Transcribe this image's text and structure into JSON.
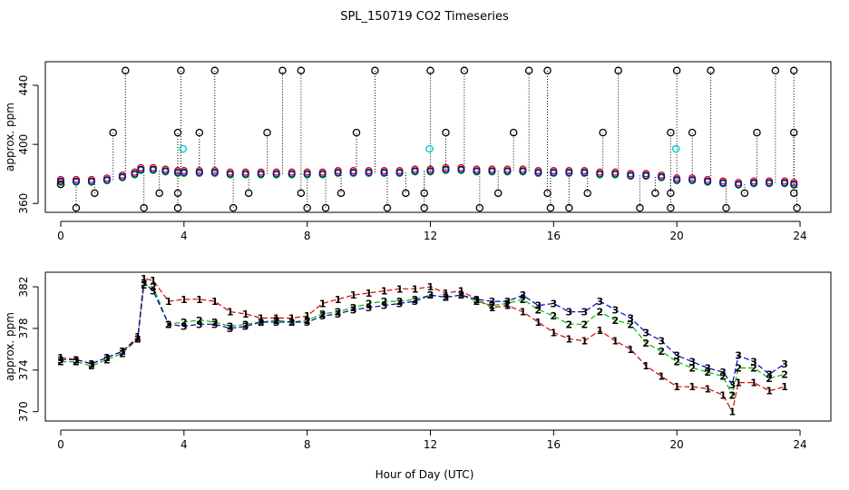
{
  "figure": {
    "title": "SPL_150719  CO2 Timeseries",
    "x_axis_label": "Hour of Day (UTC)"
  },
  "chart_data": [
    {
      "type": "scatter",
      "panel": "top",
      "ylabel": "approx. ppm",
      "xlim": [
        -0.5,
        25
      ],
      "ylim": [
        354,
        456
      ],
      "x_ticks": [
        0,
        4,
        8,
        12,
        16,
        20,
        24
      ],
      "y_ticks": [
        360,
        400,
        440
      ],
      "colors": {
        "red": "#dd0000",
        "green": "#00bb00",
        "blue": "#0000cc",
        "cyan": "#00cccc",
        "black": "#000000"
      },
      "series": [
        {
          "name": "mean concentration (red/green/blue)",
          "x": [
            0.0,
            0.5,
            1.0,
            1.5,
            2.0,
            2.4,
            2.6,
            3.0,
            3.4,
            3.8,
            4.0,
            4.5,
            5.0,
            5.5,
            6.0,
            6.5,
            7.0,
            7.5,
            8.0,
            8.5,
            9.0,
            9.5,
            10.0,
            10.5,
            11.0,
            11.5,
            12.0,
            12.5,
            13.0,
            13.5,
            14.0,
            14.5,
            15.0,
            15.5,
            16.0,
            16.5,
            17.0,
            17.5,
            18.0,
            18.5,
            19.0,
            19.5,
            20.0,
            20.5,
            21.0,
            21.5,
            22.0,
            22.5,
            23.0,
            23.5,
            23.8
          ],
          "y": [
            375,
            375,
            375,
            376,
            378,
            380,
            383,
            383,
            382,
            381,
            381,
            381,
            381,
            380,
            380,
            380,
            380,
            380,
            380,
            380,
            381,
            381,
            381,
            381,
            381,
            382,
            382,
            383,
            383,
            382,
            382,
            382,
            382,
            381,
            381,
            381,
            381,
            380,
            380,
            379,
            379,
            378,
            376,
            376,
            375,
            374,
            373,
            374,
            374,
            374,
            373
          ]
        },
        {
          "name": "flagged high (black circles)",
          "x": [
            0.0,
            1.7,
            2.1,
            3.9,
            3.8,
            4.5,
            5.0,
            6.7,
            7.2,
            7.8,
            9.6,
            10.2,
            12.0,
            12.5,
            13.1,
            14.7,
            15.2,
            15.8,
            17.6,
            18.1,
            19.8,
            20.0,
            20.5,
            21.1,
            22.6,
            23.2,
            23.8,
            23.8
          ],
          "y": [
            373,
            408,
            450,
            450,
            408,
            408,
            450,
            408,
            450,
            450,
            408,
            450,
            450,
            408,
            450,
            408,
            450,
            450,
            408,
            450,
            408,
            450,
            408,
            450,
            408,
            450,
            450,
            408
          ]
        },
        {
          "name": "flagged low (black circles)",
          "x": [
            0.5,
            1.1,
            2.7,
            3.2,
            3.8,
            3.8,
            5.6,
            6.1,
            7.8,
            8.0,
            8.6,
            9.1,
            10.6,
            11.2,
            11.8,
            11.8,
            13.6,
            14.2,
            15.8,
            15.9,
            16.5,
            17.1,
            18.8,
            19.3,
            19.8,
            19.8,
            21.6,
            22.2,
            23.8,
            23.9
          ],
          "y": [
            357,
            367,
            357,
            367,
            357,
            367,
            357,
            367,
            367,
            357,
            357,
            367,
            357,
            367,
            367,
            357,
            357,
            367,
            367,
            357,
            357,
            367,
            357,
            367,
            367,
            357,
            357,
            367,
            367,
            357
          ]
        },
        {
          "name": "cyan circles",
          "x": [
            3.97,
            11.97,
            19.97
          ],
          "y": [
            397,
            397,
            397
          ]
        }
      ]
    },
    {
      "type": "line",
      "panel": "bottom",
      "ylabel": "approx. ppm",
      "xlim": [
        -0.5,
        25
      ],
      "ylim": [
        369.1,
        383.4
      ],
      "x_ticks": [
        0,
        4,
        8,
        12,
        16,
        20,
        24
      ],
      "y_ticks": [
        370,
        374,
        378,
        382
      ],
      "colors": {
        "1": "#dd0000",
        "2": "#00bb00",
        "3": "#0000cc"
      },
      "series": [
        {
          "name": "1",
          "label": "1",
          "x": [
            0.0,
            0.5,
            1.0,
            1.5,
            2.0,
            2.5,
            2.7,
            3.0,
            3.5,
            4.0,
            4.5,
            5.0,
            5.5,
            6.0,
            6.5,
            7.0,
            7.5,
            8.0,
            8.5,
            9.0,
            9.5,
            10.0,
            10.5,
            11.0,
            11.5,
            12.0,
            12.5,
            13.0,
            13.5,
            14.0,
            14.5,
            15.0,
            15.5,
            16.0,
            16.5,
            17.0,
            17.5,
            18.0,
            18.5,
            19.0,
            19.5,
            20.0,
            20.5,
            21.0,
            21.5,
            21.8,
            22.0,
            22.5,
            23.0,
            23.5
          ],
          "y": [
            375.2,
            375.0,
            374.6,
            375.2,
            375.8,
            377.2,
            382.8,
            382.6,
            380.6,
            380.8,
            380.8,
            380.6,
            379.6,
            379.4,
            379.0,
            379.0,
            379.0,
            379.2,
            380.4,
            380.8,
            381.2,
            381.4,
            381.6,
            381.8,
            381.8,
            382.0,
            381.4,
            381.6,
            380.8,
            380.0,
            380.2,
            379.6,
            378.6,
            377.6,
            377.0,
            376.8,
            377.8,
            376.8,
            376.0,
            374.4,
            373.4,
            372.4,
            372.4,
            372.2,
            371.6,
            370.0,
            372.8,
            372.8,
            372.0,
            372.4
          ]
        },
        {
          "name": "2",
          "label": "2",
          "x": [
            0.0,
            0.5,
            1.0,
            1.5,
            2.0,
            2.5,
            2.7,
            3.0,
            3.5,
            4.0,
            4.5,
            5.0,
            5.5,
            6.0,
            6.5,
            7.0,
            7.5,
            8.0,
            8.5,
            9.0,
            9.5,
            10.0,
            10.5,
            11.0,
            11.5,
            12.0,
            12.5,
            13.0,
            13.5,
            14.0,
            14.5,
            15.0,
            15.5,
            16.0,
            16.5,
            17.0,
            17.5,
            18.0,
            18.5,
            19.0,
            19.5,
            20.0,
            20.5,
            21.0,
            21.5,
            21.8,
            22.0,
            22.5,
            23.0,
            23.5
          ],
          "y": [
            374.8,
            374.8,
            374.4,
            375.0,
            375.6,
            377.0,
            382.2,
            382.0,
            378.4,
            378.6,
            378.8,
            378.6,
            378.2,
            378.4,
            378.6,
            378.8,
            378.6,
            378.8,
            379.4,
            379.6,
            380.0,
            380.4,
            380.6,
            380.6,
            380.8,
            381.2,
            381.0,
            381.2,
            380.6,
            380.2,
            380.4,
            380.8,
            379.8,
            379.2,
            378.4,
            378.4,
            379.6,
            378.8,
            378.4,
            376.6,
            375.8,
            374.8,
            374.2,
            373.8,
            373.4,
            371.6,
            374.2,
            374.2,
            373.2,
            373.6
          ]
        },
        {
          "name": "3",
          "label": "3",
          "x": [
            0.0,
            0.5,
            1.0,
            1.5,
            2.0,
            2.5,
            2.7,
            3.0,
            3.5,
            4.0,
            4.5,
            5.0,
            5.5,
            6.0,
            6.5,
            7.0,
            7.5,
            8.0,
            8.5,
            9.0,
            9.5,
            10.0,
            10.5,
            11.0,
            11.5,
            12.0,
            12.5,
            13.0,
            13.5,
            14.0,
            14.5,
            15.0,
            15.5,
            16.0,
            16.5,
            17.0,
            17.5,
            18.0,
            18.5,
            19.0,
            19.5,
            20.0,
            20.5,
            21.0,
            21.5,
            21.8,
            22.0,
            22.5,
            23.0,
            23.5
          ],
          "y": [
            375.0,
            375.0,
            374.6,
            375.2,
            375.8,
            377.0,
            382.4,
            381.6,
            378.4,
            378.2,
            378.4,
            378.4,
            378.0,
            378.2,
            378.6,
            378.6,
            378.6,
            378.6,
            379.2,
            379.4,
            379.8,
            380.0,
            380.2,
            380.4,
            380.6,
            381.2,
            381.0,
            381.2,
            380.8,
            380.6,
            380.6,
            381.2,
            380.2,
            380.4,
            379.6,
            379.6,
            380.6,
            379.8,
            379.0,
            377.6,
            376.8,
            375.4,
            374.8,
            374.2,
            373.8,
            372.6,
            375.4,
            374.8,
            373.6,
            374.6
          ]
        }
      ]
    }
  ]
}
